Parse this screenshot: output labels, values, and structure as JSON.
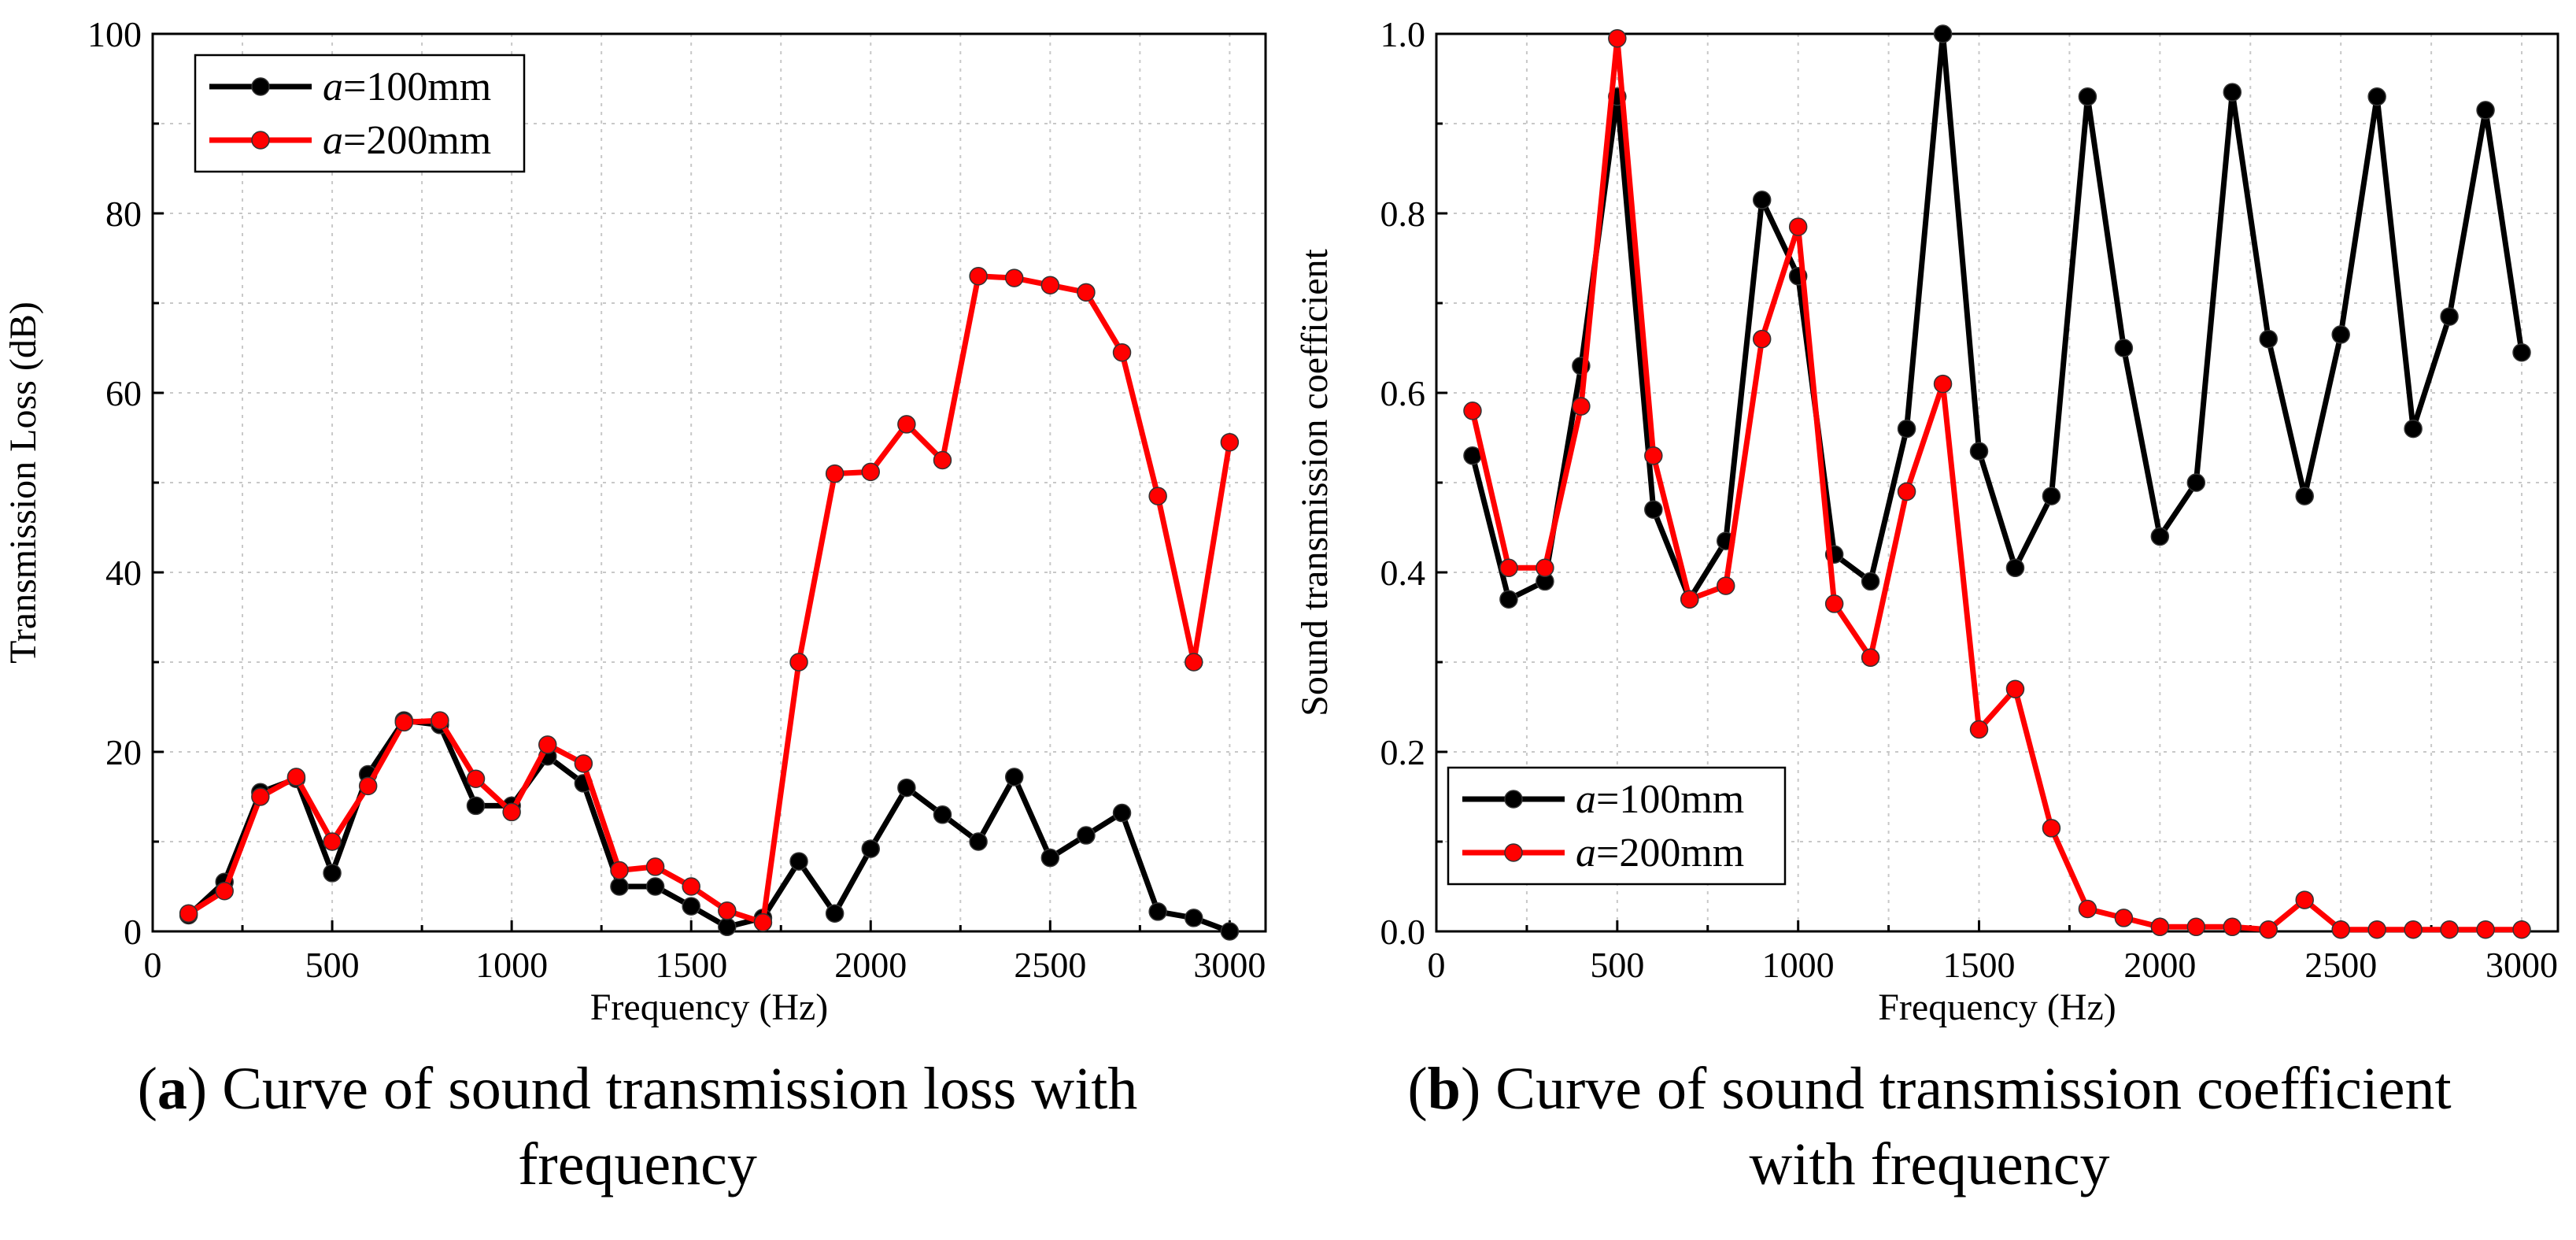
{
  "chart_data": [
    {
      "panel": "a",
      "type": "line",
      "xlabel": "Frequency (Hz)",
      "ylabel": "Transmission Loss (dB)",
      "xlim": [
        0,
        3100
      ],
      "ylim": [
        0,
        100
      ],
      "xticks": [
        0,
        500,
        1000,
        1500,
        2000,
        2500,
        3000
      ],
      "yticks": [
        0,
        20,
        40,
        60,
        80,
        100
      ],
      "grid": true,
      "legend_position": "top-left",
      "x": [
        100,
        200,
        300,
        400,
        500,
        600,
        700,
        800,
        900,
        1000,
        1100,
        1200,
        1300,
        1400,
        1500,
        1600,
        1700,
        1800,
        1900,
        2000,
        2100,
        2200,
        2300,
        2400,
        2500,
        2600,
        2700,
        2800,
        2900,
        3000
      ],
      "series": [
        {
          "name_italic": "a",
          "name_rest": "=100mm",
          "color": "#000000",
          "values": [
            1.8,
            5.5,
            15.5,
            17,
            6.5,
            17.5,
            23.5,
            23,
            14,
            14,
            19.5,
            16.5,
            5,
            5,
            2.8,
            0.5,
            1.5,
            7.8,
            2,
            9.2,
            16,
            13,
            10,
            17.2,
            8.2,
            10.7,
            13.2,
            2.2,
            1.5,
            0
          ]
        },
        {
          "name_italic": "a",
          "name_rest": "=200mm",
          "color": "#ff0000",
          "values": [
            2,
            4.5,
            15,
            17.2,
            10,
            16.2,
            23.3,
            23.5,
            17,
            13.3,
            20.8,
            18.7,
            6.8,
            7.2,
            5,
            2.3,
            1,
            30,
            51,
            51.2,
            56.5,
            52.5,
            73,
            72.8,
            72,
            71.2,
            64.5,
            48.5,
            30,
            54.5
          ]
        }
      ]
    },
    {
      "panel": "b",
      "type": "line",
      "xlabel": "Frequency (Hz)",
      "ylabel": "Sound transmission coefficient",
      "xlim": [
        0,
        3100
      ],
      "ylim": [
        0,
        1.0
      ],
      "xticks": [
        0,
        500,
        1000,
        1500,
        2000,
        2500,
        3000
      ],
      "yticks": [
        0.0,
        0.2,
        0.4,
        0.6,
        0.8,
        1.0
      ],
      "ytick_labels": [
        "0.0",
        "0.2",
        "0.4",
        "0.6",
        "0.8",
        "1.0"
      ],
      "grid": true,
      "legend_position": "bottom-left",
      "x": [
        100,
        200,
        300,
        400,
        500,
        600,
        700,
        800,
        900,
        1000,
        1100,
        1200,
        1300,
        1400,
        1500,
        1600,
        1700,
        1800,
        1900,
        2000,
        2100,
        2200,
        2300,
        2400,
        2500,
        2600,
        2700,
        2800,
        2900,
        3000
      ],
      "series": [
        {
          "name_italic": "a",
          "name_rest": "=100mm",
          "color": "#000000",
          "values": [
            0.53,
            0.37,
            0.39,
            0.63,
            0.93,
            0.47,
            0.37,
            0.435,
            0.815,
            0.73,
            0.42,
            0.39,
            0.56,
            1.0,
            0.535,
            0.405,
            0.485,
            0.93,
            0.65,
            0.44,
            0.5,
            0.935,
            0.66,
            0.485,
            0.665,
            0.93,
            0.56,
            0.685,
            0.915,
            0.645
          ]
        },
        {
          "name_italic": "a",
          "name_rest": "=200mm",
          "color": "#ff0000",
          "values": [
            0.58,
            0.405,
            0.405,
            0.585,
            0.995,
            0.53,
            0.37,
            0.385,
            0.66,
            0.785,
            0.365,
            0.305,
            0.49,
            0.61,
            0.225,
            0.27,
            0.115,
            0.025,
            0.015,
            0.005,
            0.005,
            0.005,
            0.002,
            0.035,
            0.002,
            0.002,
            0.002,
            0.002,
            0.002,
            0.002
          ]
        }
      ]
    }
  ],
  "captions": {
    "a": {
      "letter": "a",
      "line1": " Curve of sound transmission loss with",
      "line2": "frequency"
    },
    "b": {
      "letter": "b",
      "line1": " Curve of sound transmission coefficient",
      "line2": "with frequency"
    }
  }
}
